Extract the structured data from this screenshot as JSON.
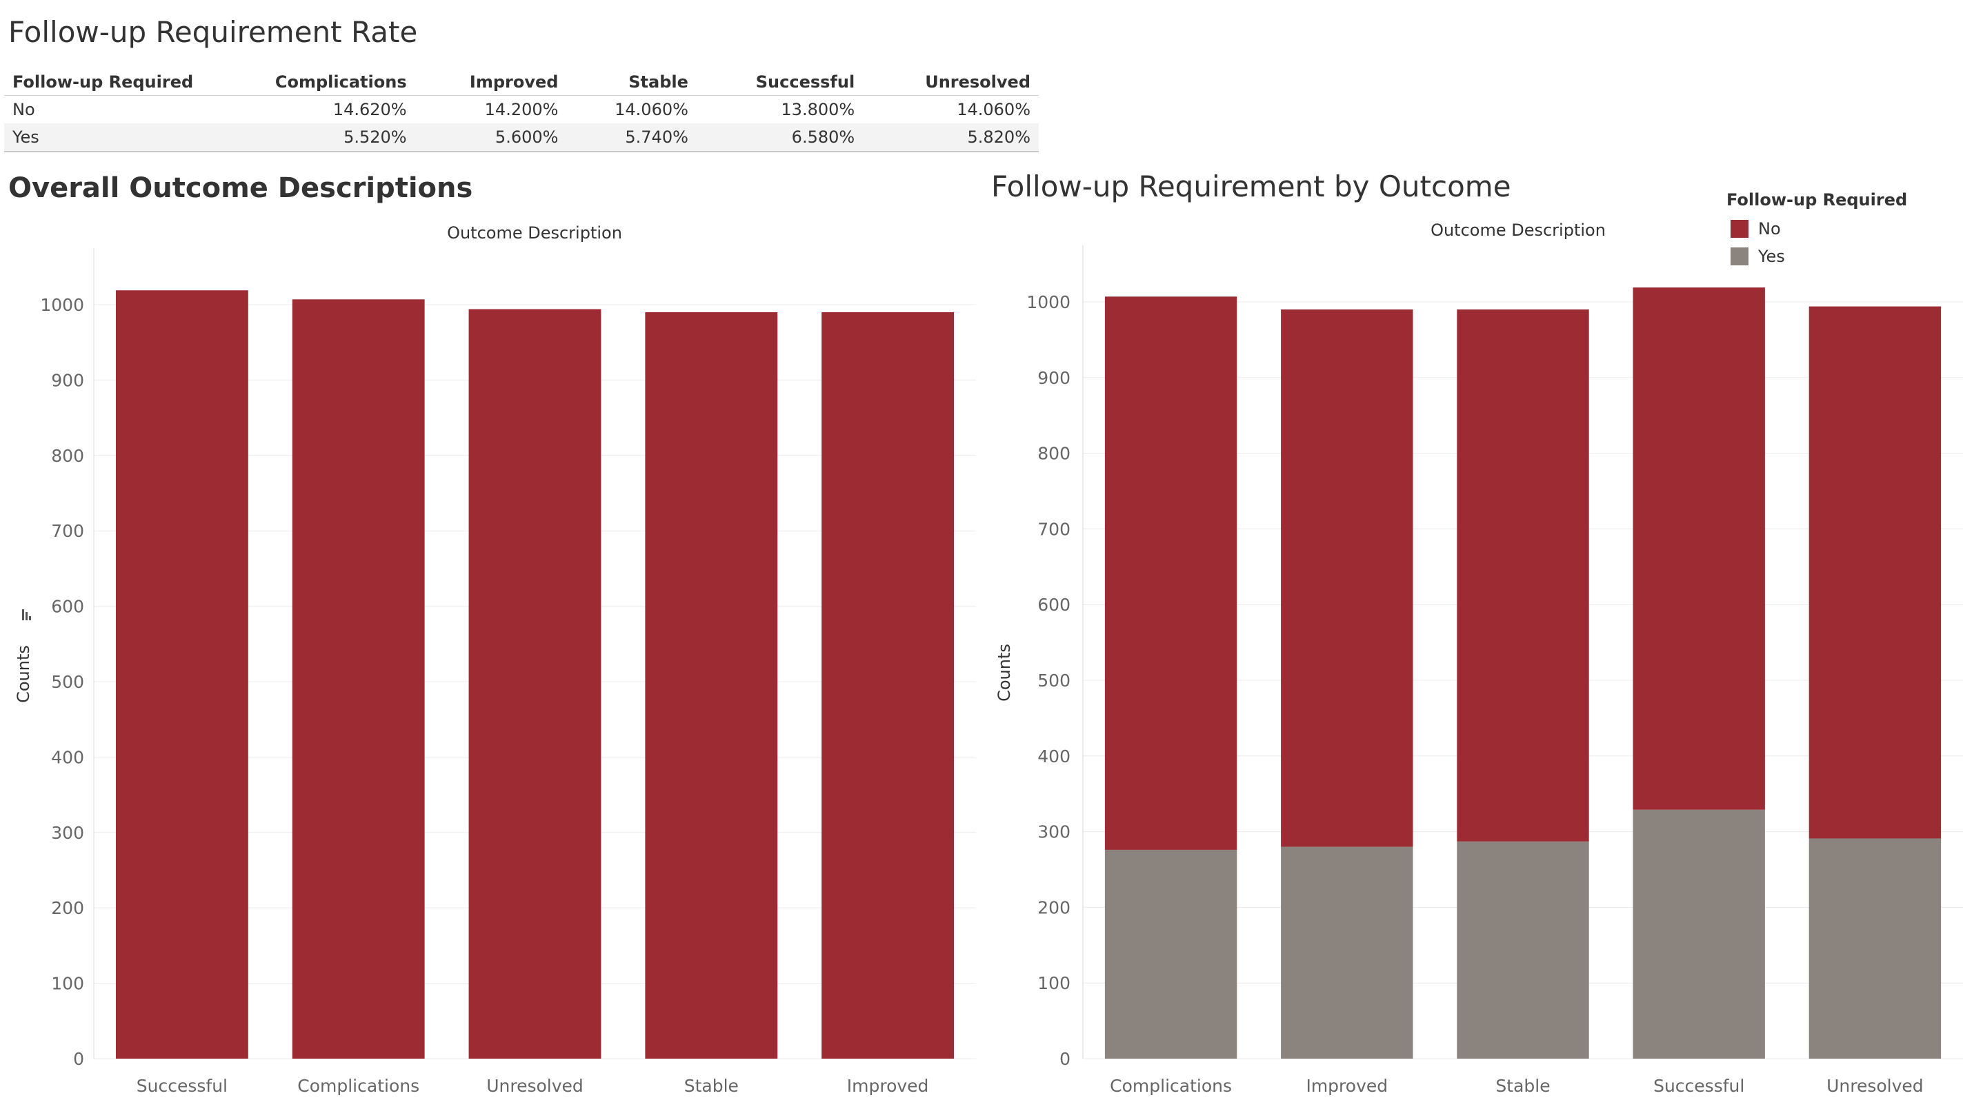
{
  "dashboard": {
    "summary_title": "Follow-up Requirement Rate",
    "left_title": "Overall Outcome Descriptions",
    "right_title": "Follow-up Requirement by Outcome"
  },
  "crosstab": {
    "headers": [
      "Follow-up Required",
      "Complications",
      "Improved",
      "Stable",
      "Successful",
      "Unresolved"
    ],
    "rows": [
      {
        "label": "No",
        "values": [
          "14.620%",
          "14.200%",
          "14.060%",
          "13.800%",
          "14.060%"
        ]
      },
      {
        "label": "Yes",
        "values": [
          "5.520%",
          "5.600%",
          "5.740%",
          "6.580%",
          "5.820%"
        ]
      }
    ]
  },
  "legend": {
    "title": "Follow-up Required",
    "items": [
      {
        "label": "No",
        "color": "#9c2b33"
      },
      {
        "label": "Yes",
        "color": "#8b847e"
      }
    ]
  },
  "chart_data": [
    {
      "type": "bar",
      "title": "Overall Outcome Descriptions",
      "column_header": "Outcome Description",
      "ylabel": "Counts",
      "categories": [
        "Successful",
        "Complications",
        "Unresolved",
        "Stable",
        "Improved"
      ],
      "values": [
        1019,
        1007,
        994,
        990,
        990
      ],
      "ylim": [
        0,
        1000
      ],
      "yticks": [
        0,
        100,
        200,
        300,
        400,
        500,
        600,
        700,
        800,
        900,
        1000
      ],
      "color": "#9c2b33",
      "grid": true,
      "sort_icon": true
    },
    {
      "type": "bar",
      "stacked": true,
      "title": "Follow-up Requirement by Outcome",
      "column_header": "Outcome Description",
      "ylabel": "Counts",
      "categories": [
        "Complications",
        "Improved",
        "Stable",
        "Successful",
        "Unresolved"
      ],
      "series": [
        {
          "name": "Yes",
          "color": "#8b847e",
          "values": [
            276,
            280,
            287,
            329,
            291
          ]
        },
        {
          "name": "No",
          "color": "#9c2b33",
          "values": [
            731,
            710,
            703,
            690,
            703
          ]
        }
      ],
      "ylim": [
        0,
        1000
      ],
      "yticks": [
        0,
        100,
        200,
        300,
        400,
        500,
        600,
        700,
        800,
        900,
        1000
      ],
      "grid": true,
      "legend_position": "top-right"
    }
  ]
}
